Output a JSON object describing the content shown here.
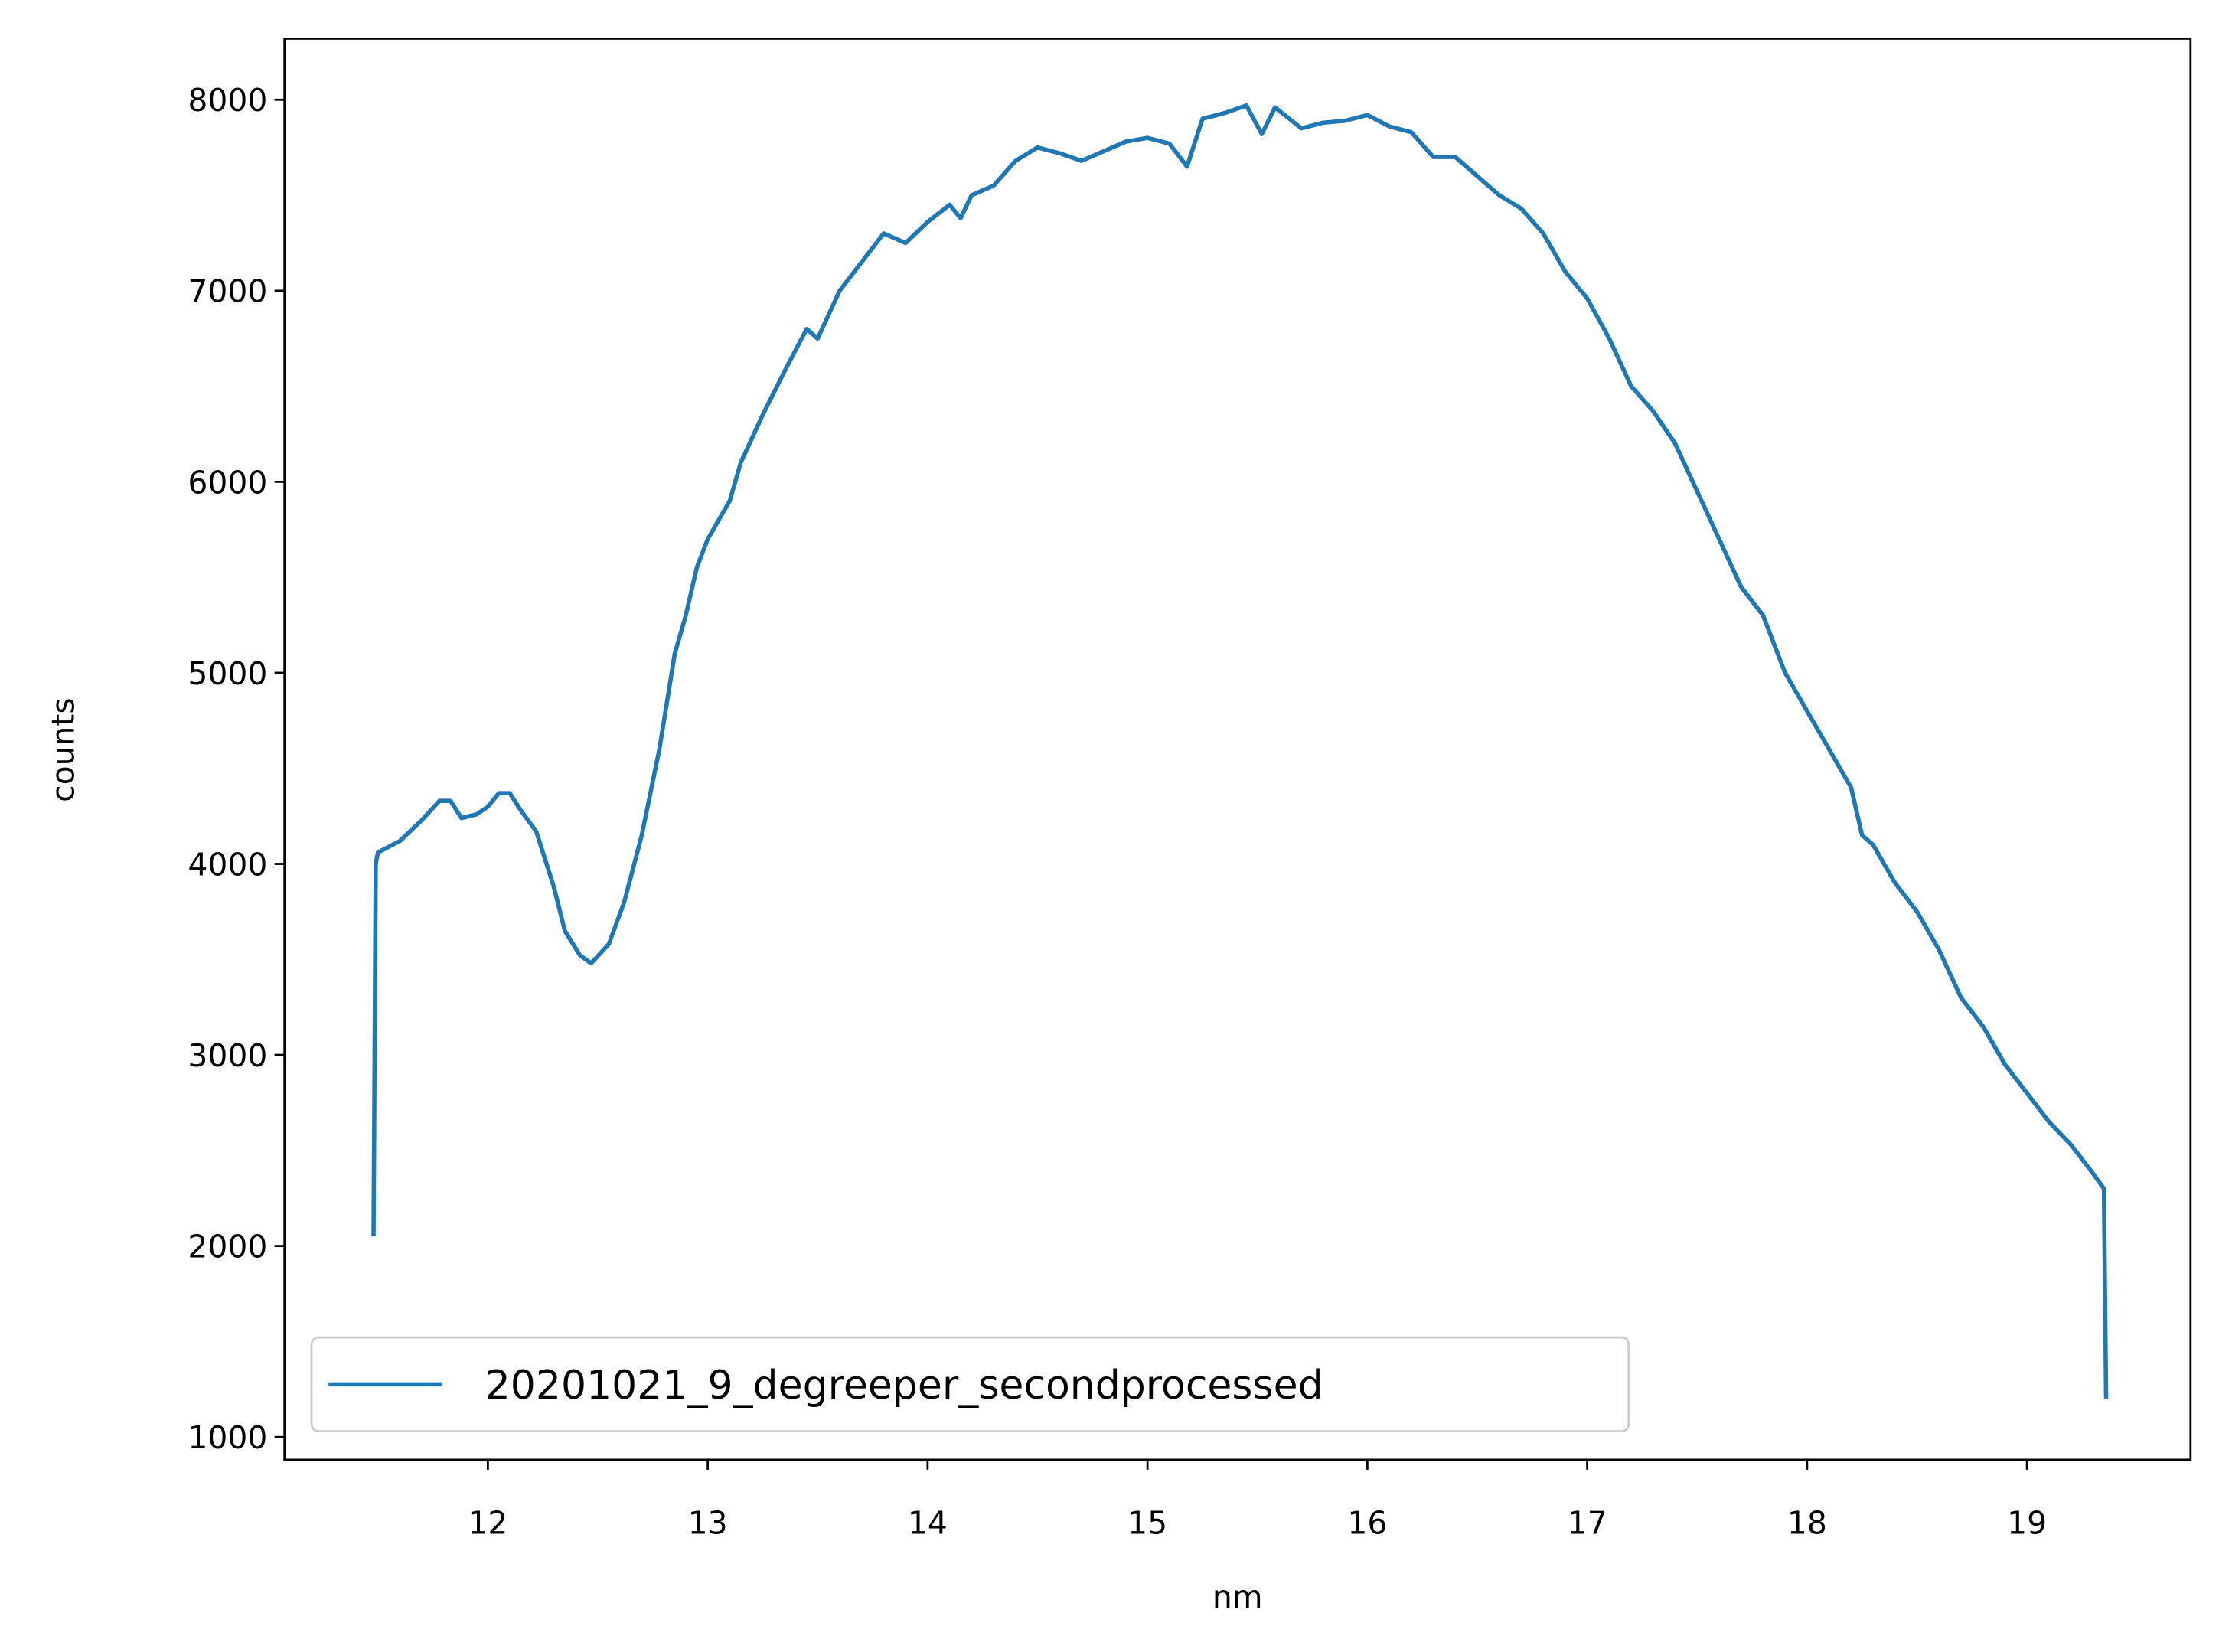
{
  "chart_data": {
    "type": "line",
    "xlabel": "nm",
    "ylabel": "counts",
    "x": [
      11.48,
      11.49,
      11.5,
      11.6,
      11.7,
      11.78,
      11.83,
      11.88,
      11.95,
      12.0,
      12.05,
      12.1,
      12.15,
      12.22,
      12.3,
      12.35,
      12.42,
      12.47,
      12.55,
      12.62,
      12.7,
      12.78,
      12.85,
      12.9,
      12.95,
      13.0,
      13.1,
      13.15,
      13.25,
      13.35,
      13.45,
      13.5,
      13.6,
      13.7,
      13.8,
      13.9,
      14.0,
      14.1,
      14.15,
      14.2,
      14.3,
      14.4,
      14.5,
      14.6,
      14.7,
      14.8,
      14.9,
      15.0,
      15.1,
      15.18,
      15.25,
      15.35,
      15.45,
      15.52,
      15.58,
      15.7,
      15.8,
      15.9,
      16.0,
      16.1,
      16.2,
      16.3,
      16.4,
      16.5,
      16.6,
      16.7,
      16.8,
      16.9,
      17.0,
      17.1,
      17.2,
      17.3,
      17.4,
      17.5,
      17.6,
      17.7,
      17.8,
      17.9,
      18.0,
      18.1,
      18.2,
      18.25,
      18.3,
      18.4,
      18.5,
      18.6,
      18.7,
      18.8,
      18.9,
      19.0,
      19.1,
      19.2,
      19.3,
      19.35,
      19.36
    ],
    "series": [
      {
        "name": "20201021_9_degreeper_secondprocessed",
        "color": "#1f77b4",
        "values": [
          2050,
          4000,
          4060,
          4120,
          4230,
          4330,
          4330,
          4240,
          4260,
          4300,
          4370,
          4370,
          4280,
          4170,
          3880,
          3650,
          3520,
          3480,
          3580,
          3800,
          4150,
          4600,
          5100,
          5300,
          5550,
          5700,
          5900,
          6100,
          6350,
          6580,
          6800,
          6750,
          7000,
          7150,
          7300,
          7250,
          7360,
          7450,
          7380,
          7500,
          7550,
          7680,
          7750,
          7720,
          7680,
          7730,
          7780,
          7800,
          7770,
          7650,
          7900,
          7930,
          7970,
          7820,
          7960,
          7850,
          7880,
          7890,
          7920,
          7860,
          7830,
          7700,
          7700,
          7600,
          7500,
          7430,
          7300,
          7100,
          6960,
          6750,
          6500,
          6370,
          6200,
          5950,
          5700,
          5450,
          5300,
          5000,
          4800,
          4600,
          4400,
          4150,
          4100,
          3900,
          3750,
          3550,
          3300,
          3150,
          2950,
          2800,
          2650,
          2530,
          2380,
          2300,
          1200
        ]
      }
    ],
    "xlim": [
      11.075,
      19.744
    ],
    "xticks": [
      12,
      13,
      14,
      15,
      16,
      17,
      18,
      19
    ],
    "ylim": [
      881,
      8320
    ],
    "yticks": [
      1000,
      2000,
      3000,
      4000,
      5000,
      6000,
      7000,
      8000
    ],
    "grid": false,
    "legend": "lower left"
  }
}
